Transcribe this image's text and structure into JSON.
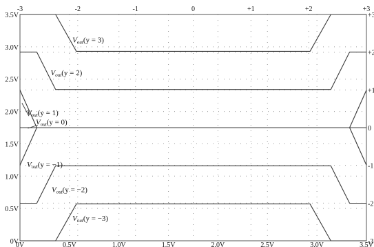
{
  "chart_data": {
    "type": "line",
    "grid": true,
    "x_range": [
      0,
      3.5
    ],
    "y_range": [
      0,
      3.5
    ],
    "top_range": [
      -3,
      3
    ],
    "x_tick_values": [
      0,
      0.5,
      1.0,
      1.5,
      2.0,
      2.5,
      3.0,
      3.5
    ],
    "x_tick_labels": [
      "0V",
      "0.5V",
      "1.0V",
      "1.5V",
      "2.0V",
      "2.5V",
      "3.0V",
      "3.5V"
    ],
    "y_tick_values": [
      0,
      0.5,
      1.0,
      1.5,
      2.0,
      2.5,
      3.0,
      3.5
    ],
    "y_tick_labels": [
      "0V",
      "0.5V",
      "1.0V",
      "1.5V",
      "2.0V",
      "2.5V",
      "3.0V",
      "3.5V"
    ],
    "top_tick_values": [
      -3,
      -2,
      -1,
      0,
      1,
      2,
      3
    ],
    "top_tick_labels": [
      "-3",
      "-2",
      "-1",
      "0",
      "+1",
      "+2",
      "+3"
    ],
    "right_tick_values": [
      3.5,
      2.917,
      2.333,
      1.75,
      1.167,
      0.583,
      0
    ],
    "right_tick_labels": [
      "+3",
      "+2",
      "+1",
      "0",
      "-1",
      "-2",
      "-3"
    ],
    "series": [
      {
        "name": "V_out(y = 3)",
        "x": [
          0,
          0.36,
          0.57,
          2.93,
          3.14,
          3.5
        ],
        "y": [
          3.5,
          3.5,
          2.93,
          2.93,
          3.5,
          3.5
        ]
      },
      {
        "name": "V_out(y = 2)",
        "x": [
          0,
          0.17,
          0.36,
          3.14,
          3.33,
          3.5
        ],
        "y": [
          2.92,
          2.92,
          2.34,
          2.34,
          2.92,
          2.92
        ]
      },
      {
        "name": "V_out(y = 1)",
        "x": [
          0,
          0.17,
          3.33,
          3.5
        ],
        "y": [
          2.33,
          1.75,
          1.75,
          2.33
        ]
      },
      {
        "name": "V_out(y = 0)",
        "x": [
          0,
          3.5
        ],
        "y": [
          1.75,
          1.75
        ]
      },
      {
        "name": "V_out(y = −1)",
        "x": [
          0,
          0.17,
          3.33,
          3.5
        ],
        "y": [
          1.17,
          1.75,
          1.75,
          1.17
        ]
      },
      {
        "name": "V_out(y = −2)",
        "x": [
          0,
          0.17,
          0.36,
          3.14,
          3.33,
          3.5
        ],
        "y": [
          0.58,
          0.58,
          1.16,
          1.16,
          0.58,
          0.58
        ]
      },
      {
        "name": "V_out(y = −3)",
        "x": [
          0,
          0.36,
          0.57,
          2.93,
          3.14,
          3.5
        ],
        "y": [
          0,
          0,
          0.57,
          0.57,
          0,
          0
        ]
      }
    ],
    "annotations": [
      {
        "series": "V_out(y = 3)",
        "main": "V",
        "sub": "out",
        "rest": "(y = 3)",
        "at": [
          0.53,
          3.07
        ]
      },
      {
        "series": "V_out(y = 2)",
        "main": "V",
        "sub": "out",
        "rest": "(y = 2)",
        "at": [
          0.31,
          2.56
        ]
      },
      {
        "series": "V_out(y = 1)",
        "main": "V",
        "sub": "out",
        "rest": "(y = 1)",
        "at": [
          0.07,
          1.94
        ]
      },
      {
        "series": "V_out(y = 0)",
        "main": "V",
        "sub": "out",
        "rest": "(y = 0)",
        "at": [
          0.16,
          1.8
        ]
      },
      {
        "series": "V_out(y = −1)",
        "main": "V",
        "sub": "out",
        "rest": "(y = −1)",
        "at": [
          0.07,
          1.14
        ]
      },
      {
        "series": "V_out(y = −2)",
        "main": "V",
        "sub": "out",
        "rest": "(y = −2)",
        "at": [
          0.32,
          0.75
        ]
      },
      {
        "series": "V_out(y = −3)",
        "main": "V",
        "sub": "out",
        "rest": "(y = −3)",
        "at": [
          0.53,
          0.31
        ]
      }
    ]
  }
}
